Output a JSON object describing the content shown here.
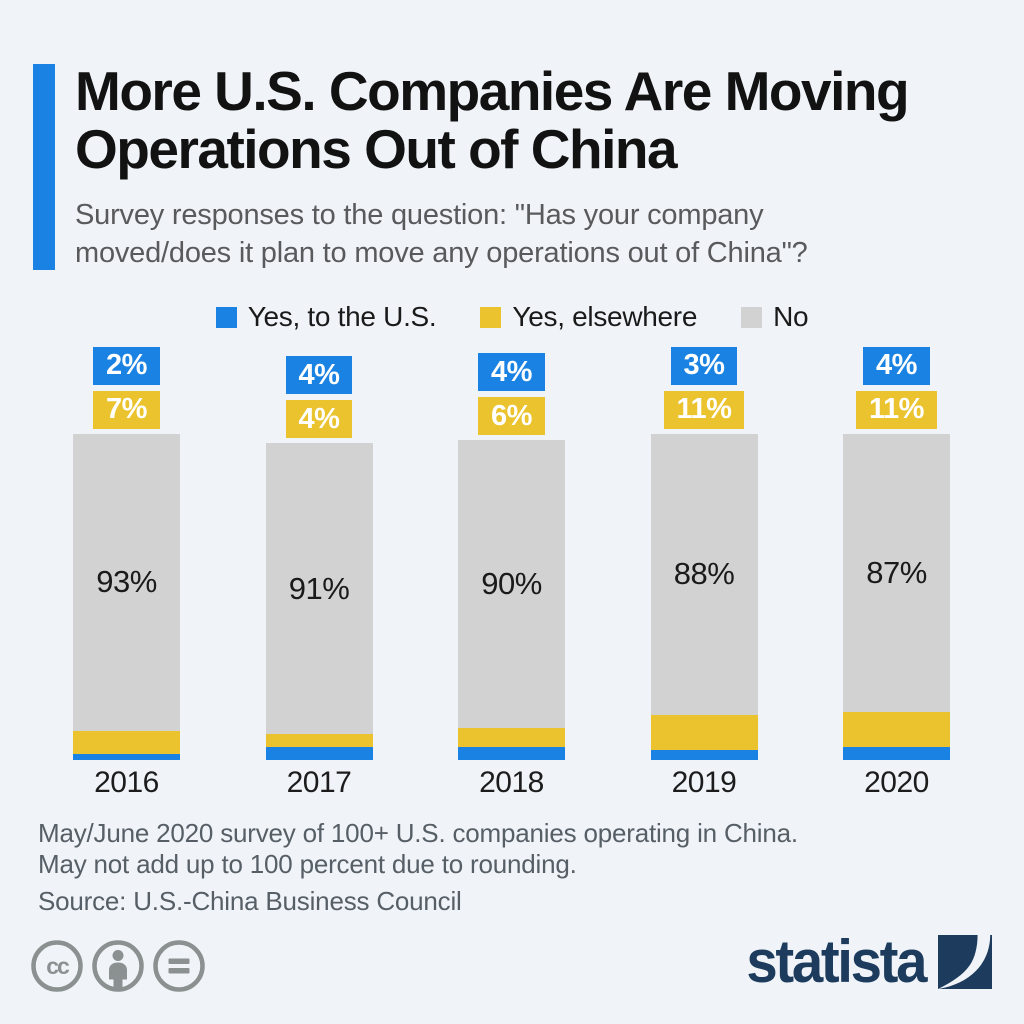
{
  "title": "More U.S. Companies Are Moving\nOperations Out of China",
  "subtitle": "Survey responses to the question: \"Has your company\nmoved/does it plan to move any operations out of China\"?",
  "legend": [
    {
      "label": "Yes, to the U.S.",
      "color": "#1a82e2"
    },
    {
      "label": "Yes, elsewhere",
      "color": "#eac32e"
    },
    {
      "label": "No",
      "color": "#d2d2d2"
    }
  ],
  "chart_data": {
    "type": "bar",
    "stacked": true,
    "unit": "%",
    "title": "Survey responses: operations moved out of China",
    "categories": [
      "2016",
      "2017",
      "2018",
      "2019",
      "2020"
    ],
    "series": [
      {
        "name": "Yes, to the U.S.",
        "color": "#1a82e2",
        "values": [
          2,
          4,
          4,
          3,
          4
        ]
      },
      {
        "name": "Yes, elsewhere",
        "color": "#eac32e",
        "values": [
          7,
          4,
          6,
          11,
          11
        ]
      },
      {
        "name": "No",
        "color": "#d2d2d2",
        "values": [
          93,
          91,
          90,
          88,
          87
        ]
      }
    ],
    "value_label_suffix": "%",
    "legend_position": "top",
    "grid": false,
    "ylim": [
      0,
      100
    ]
  },
  "footer": {
    "note": "May/June 2020 survey of 100+ U.S. companies operating in China.\nMay not add up to 100 percent due to rounding.",
    "source": "Source: U.S.-China Business Council"
  },
  "branding": {
    "logo_text": "statista",
    "logo_color": "#1c3b5d"
  },
  "icons": {
    "footer_icons": [
      "cc-icon",
      "attribution-icon",
      "equal-license-icon"
    ],
    "logo_mark": "statista-s-curve-square"
  },
  "colors": {
    "background": "#f0f4f9",
    "accent_blue": "#1a82e2",
    "yellow": "#eac32e",
    "gray_bar": "#d2d2d2",
    "title_text": "#121212",
    "subtitle_text": "#595a5c",
    "footer_text": "#575f66",
    "cc_gray": "#8b9090"
  }
}
